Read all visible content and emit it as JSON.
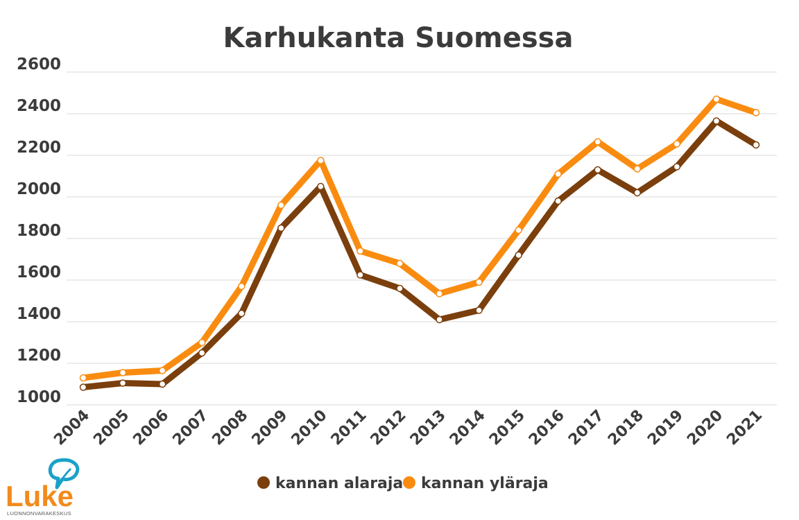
{
  "chart_data": {
    "type": "line",
    "title": "Karhukanta Suomessa",
    "xlabel": "",
    "ylabel": "",
    "categories": [
      "2004",
      "2005",
      "2006",
      "2007",
      "2008",
      "2009",
      "2010",
      "2011",
      "2012",
      "2013",
      "2014",
      "2015",
      "2016",
      "2017",
      "2018",
      "2019",
      "2020",
      "2021"
    ],
    "ylim": [
      1000,
      2600
    ],
    "yticks": [
      1000,
      1200,
      1400,
      1600,
      1800,
      2000,
      2200,
      2400,
      2600
    ],
    "grid": true,
    "legend_position": "bottom",
    "series": [
      {
        "name": "kannan alaraja",
        "color": "#7a3f0c",
        "values": [
          1085,
          1105,
          1100,
          1250,
          1440,
          1850,
          2050,
          1625,
          1560,
          1410,
          1455,
          1720,
          1980,
          2130,
          2020,
          2145,
          2365,
          2250
        ]
      },
      {
        "name": "kannan yläraja",
        "color": "#f98c10",
        "values": [
          1130,
          1155,
          1165,
          1300,
          1570,
          1960,
          2175,
          1740,
          1680,
          1535,
          1590,
          1840,
          2110,
          2265,
          2135,
          2255,
          2470,
          2405
        ]
      }
    ]
  },
  "logo": {
    "text": "Luke",
    "subtitle": "LUONNONVARAKESKUS",
    "color": "#f28a1c"
  }
}
